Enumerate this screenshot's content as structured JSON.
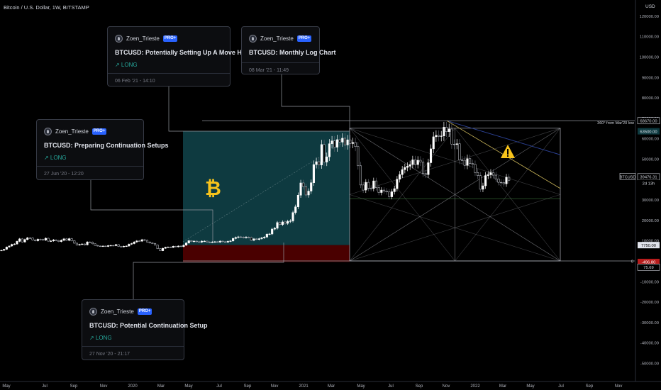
{
  "header": {
    "symbol_title": "Bitcoin / U.S. Dollar, 1W, BITSTAMP"
  },
  "cards": [
    {
      "author": "Zoen_Trieste",
      "badge": "PRO+",
      "title": "BTCUSD: Potentially Setting Up A Move Higher",
      "direction": "↗ LONG",
      "date": "06 Feb '21 - 14:10"
    },
    {
      "author": "Zoen_Trieste",
      "badge": "PRO+",
      "title": "BTCUSD: Monthly Log Chart",
      "direction": "",
      "date": "08 Mar '21 - 11:49"
    },
    {
      "author": "Zoen_Trieste",
      "badge": "PRO+",
      "title": "BTCUSD: Preparing Continuation Setups",
      "direction": "↗ LONG",
      "date": "27 Jun '20 - 12:20"
    },
    {
      "author": "Zoen_Trieste",
      "badge": "PRO+",
      "title": "BTCUSD: Potential Continuation Setup",
      "direction": "↗ LONG",
      "date": "27 Nov '20 - 21:17"
    }
  ],
  "icons": {
    "warning": "warning-icon",
    "bitcoin": "bitcoin-icon",
    "avatar": "avatar-icon"
  },
  "colors": {
    "background": "#000000",
    "up": "#ffffff",
    "down": "#5d606b",
    "long_zone": "#0e3a40",
    "stop_zone": "#4a0000",
    "fib_lines": "#b2b5be",
    "trend_blue": "#2a3f8f",
    "trend_yellow": "#c9b458",
    "warning": "#f7c31b"
  },
  "chart_data": {
    "type": "candlestick",
    "title": "Bitcoin / U.S. Dollar, 1W, BITSTAMP",
    "y_unit": "USD",
    "ylim": [
      -55000,
      125000
    ],
    "y_ticks": [
      "120000.00",
      "110000.00",
      "100000.00",
      "90000.00",
      "80000.00",
      "70000.00",
      "60000.00",
      "50000.00",
      "40000.00",
      "30000.00",
      "20000.00",
      "10000.00",
      "0.00",
      "-10000.00",
      "-20000.00",
      "-30000.00",
      "-40000.00",
      "-50000.00"
    ],
    "x_ticks": [
      "May",
      "Jul",
      "Sep",
      "Nov",
      "2020",
      "Mar",
      "May",
      "Jul",
      "Sep",
      "Nov",
      "2021",
      "Mar",
      "May",
      "Jul",
      "Sep",
      "Nov",
      "2022",
      "Mar",
      "May",
      "Jul",
      "Sep",
      "Nov"
    ],
    "price_labels": [
      {
        "text": "68670.00",
        "value": 68670
      },
      {
        "text": "63500.00",
        "value": 63500
      },
      {
        "text": "BTCUSD",
        "value": 39476.31
      },
      {
        "text": "39476.31",
        "value": 39476.31
      },
      {
        "text": "2d 13h",
        "value": 39476.31
      },
      {
        "text": "7750.00",
        "value": 7750
      },
      {
        "text": "-496.80",
        "value": -496.8
      },
      {
        "text": "75.69",
        "value": 75.69
      }
    ],
    "annotations": [
      {
        "text": "360° from Mar'20 low",
        "value": 68670
      },
      {
        "text": "0",
        "value": 0
      }
    ],
    "weekly_closes": [
      5200,
      5700,
      6800,
      7300,
      8100,
      8300,
      9600,
      10800,
      9300,
      10500,
      11300,
      11200,
      10300,
      9900,
      10600,
      10500,
      10200,
      11100,
      9700,
      9800,
      10300,
      10000,
      9500,
      10100,
      10800,
      10100,
      10900,
      9900,
      8700,
      7800,
      8100,
      8300,
      7900,
      9300,
      9200,
      8400,
      7600,
      7300,
      7200,
      7300,
      7100,
      7500,
      7600,
      7500,
      8000,
      7100,
      6900,
      7200,
      7300,
      8200,
      8500,
      9300,
      9800,
      9700,
      10400,
      10100,
      9300,
      8800,
      8600,
      7800,
      6000,
      5000,
      6200,
      6700,
      6800,
      6600,
      7200,
      6900,
      7300,
      7000,
      7700,
      8800,
      9900,
      9500,
      9700,
      9400,
      9200,
      9700,
      9700,
      9300,
      9100,
      9300,
      9400,
      9200,
      9700,
      9400,
      9200,
      9600,
      9800,
      11000,
      11500,
      11800,
      11700,
      11400,
      11700,
      11500,
      10100,
      10800,
      10500,
      10900,
      11300,
      11700,
      13100,
      13200,
      15600,
      16000,
      18800,
      17800,
      19100,
      18400,
      19400,
      19600,
      23700,
      26500,
      32200,
      38200,
      36400,
      32300,
      34200,
      38300,
      47200,
      48600,
      47000,
      57000,
      48400,
      51000,
      57400,
      58800,
      55700,
      59400,
      58200,
      60100,
      56800,
      59300,
      57500,
      58000,
      56000,
      46600,
      37200,
      34700,
      38500,
      35600,
      35500,
      39200,
      35900,
      33500,
      34700,
      34300,
      33800,
      31400,
      33900,
      35400,
      40000,
      42300,
      44700,
      45800,
      46400,
      47200,
      49500,
      47200,
      49300,
      48400,
      42800,
      42300,
      48100,
      54900,
      60800,
      61500,
      61000,
      61200,
      65500,
      63300,
      64600,
      57200,
      57000,
      57400,
      49400,
      49300,
      46800,
      50100,
      47700,
      47300,
      43300,
      41800,
      35100,
      36800,
      41800,
      42200,
      43200,
      42000,
      40200,
      38500,
      38400,
      37800,
      41000,
      39476
    ]
  }
}
